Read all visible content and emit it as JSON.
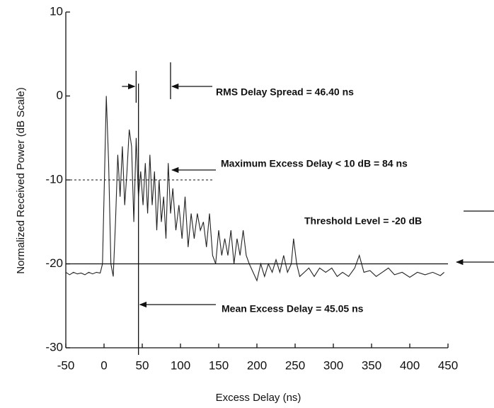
{
  "chart_data": {
    "type": "line",
    "y_label": "Normalized Received Power (dB Scale)",
    "x_label": "Excess Delay (ns)",
    "xlim": [
      -50,
      450
    ],
    "ylim": [
      -30,
      10
    ],
    "xticks": [
      -50,
      0,
      50,
      100,
      150,
      200,
      250,
      300,
      350,
      400,
      450
    ],
    "yticks": [
      -30,
      -20,
      -10,
      0,
      10
    ],
    "color": "#222222",
    "threshold_level": -20,
    "max_excess_level": -10,
    "mean_excess_delay": 45.05,
    "rms_markers": [
      42,
      87
    ],
    "annotations": [
      "RMS Delay Spread = 46.40 ns",
      "Maximum Excess Delay < 10 dB = 84 ns",
      "Threshold Level = -20 dB",
      "Mean Excess Delay = 45.05 ns"
    ],
    "x": [
      -50,
      -45,
      -40,
      -35,
      -30,
      -25,
      -20,
      -15,
      -10,
      -5,
      -2,
      0,
      3,
      6,
      9,
      12,
      15,
      18,
      21,
      24,
      27,
      30,
      33,
      36,
      39,
      42,
      45,
      48,
      51,
      54,
      57,
      60,
      63,
      66,
      69,
      72,
      75,
      78,
      81,
      84,
      87,
      90,
      94,
      98,
      102,
      106,
      110,
      114,
      118,
      122,
      126,
      130,
      134,
      138,
      142,
      146,
      150,
      154,
      158,
      162,
      166,
      170,
      174,
      178,
      182,
      186,
      190,
      195,
      200,
      205,
      210,
      215,
      220,
      225,
      230,
      235,
      240,
      245,
      248,
      252,
      256,
      262,
      268,
      275,
      282,
      290,
      298,
      305,
      312,
      320,
      328,
      334,
      340,
      348,
      356,
      364,
      372,
      380,
      390,
      400,
      410,
      420,
      430,
      440,
      445
    ],
    "values": [
      -21,
      -21.3,
      -21,
      -21.2,
      -21.1,
      -21.3,
      -21,
      -21.2,
      -21,
      -21.1,
      -20,
      -12,
      0,
      -8,
      -20,
      -21.5,
      -15,
      -7,
      -12,
      -6,
      -13,
      -9,
      -4,
      -6,
      -15,
      -5,
      -12,
      -9,
      -13,
      -8,
      -14,
      -7,
      -13,
      -9,
      -16,
      -10,
      -15,
      -12,
      -17,
      -8,
      -14,
      -11,
      -16,
      -13,
      -17,
      -12,
      -18,
      -14,
      -17,
      -14,
      -16,
      -15,
      -18,
      -14,
      -19,
      -20,
      -16,
      -19,
      -17,
      -19,
      -16,
      -20,
      -17,
      -19,
      -16,
      -19,
      -20,
      -21,
      -22,
      -20,
      -21.5,
      -20,
      -21,
      -19.5,
      -21,
      -19,
      -21,
      -20,
      -17,
      -20,
      -21.5,
      -21,
      -20.5,
      -21.5,
      -20.5,
      -21,
      -20.5,
      -21.5,
      -21,
      -21.5,
      -20.5,
      -19,
      -21,
      -20.8,
      -21.5,
      -21,
      -20.5,
      -21.3,
      -21,
      -21.6,
      -21,
      -21.3,
      -21,
      -21.4,
      -21
    ]
  }
}
